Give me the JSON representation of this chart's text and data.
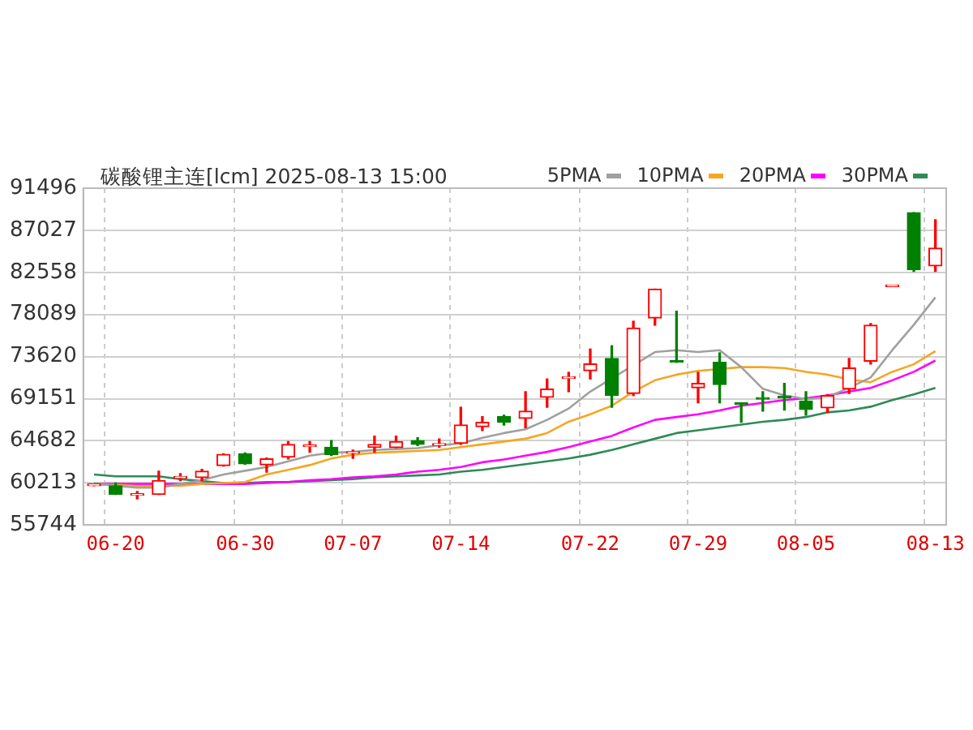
{
  "chart_data": {
    "type": "candlestick",
    "title": "碳酸锂主连[lcm] 2025-08-13 15:00",
    "categories": [
      null,
      "06-20",
      null,
      null,
      null,
      null,
      null,
      "06-30",
      null,
      null,
      null,
      null,
      "07-07",
      null,
      null,
      null,
      null,
      "07-14",
      null,
      null,
      null,
      null,
      null,
      "07-22",
      null,
      null,
      null,
      null,
      "07-29",
      null,
      null,
      null,
      null,
      "08-05",
      null,
      null,
      null,
      null,
      null,
      "08-13"
    ],
    "ylim": [
      55744,
      91496
    ],
    "yticks": [
      55744,
      60213,
      64682,
      69151,
      73620,
      78089,
      82558,
      87027,
      91496
    ],
    "grid": true,
    "legend": "top right",
    "series": [
      {
        "type": "candlestick",
        "ohlc": [
          [
            59900,
            60100,
            59900,
            60100
          ],
          [
            59900,
            60200,
            58990,
            59000
          ],
          [
            58900,
            59300,
            58500,
            59000
          ],
          [
            58990,
            61460,
            58990,
            60470
          ],
          [
            60700,
            61200,
            60450,
            60900
          ],
          [
            60760,
            61640,
            60470,
            61460
          ],
          [
            62050,
            63300,
            62000,
            63230
          ],
          [
            63300,
            63400,
            62200,
            62230
          ],
          [
            62120,
            62850,
            61350,
            62760
          ],
          [
            62940,
            64590,
            62760,
            64290
          ],
          [
            64060,
            64590,
            63470,
            64200
          ],
          [
            64000,
            64700,
            63110,
            63230
          ],
          [
            63350,
            63700,
            62820,
            63500
          ],
          [
            64000,
            65170,
            63470,
            64300
          ],
          [
            63950,
            65170,
            63950,
            64590
          ],
          [
            64700,
            65000,
            64170,
            64300
          ],
          [
            64200,
            64880,
            64000,
            64300
          ],
          [
            64410,
            68240,
            64290,
            66350
          ],
          [
            66180,
            67240,
            65770,
            66650
          ],
          [
            67240,
            67400,
            66350,
            66650
          ],
          [
            67060,
            69890,
            66060,
            67830
          ],
          [
            69300,
            71240,
            68240,
            70180
          ],
          [
            71300,
            71950,
            69890,
            71480
          ],
          [
            72120,
            74420,
            71240,
            72830
          ],
          [
            73420,
            74770,
            68240,
            69480
          ],
          [
            69710,
            77370,
            69480,
            76660
          ],
          [
            77720,
            80780,
            76950,
            80780
          ],
          [
            73200,
            78430,
            73010,
            73010
          ],
          [
            70300,
            71950,
            68710,
            70770
          ],
          [
            73010,
            74010,
            68710,
            70650
          ],
          [
            68600,
            68600,
            66650,
            68530
          ],
          [
            69150,
            69890,
            67830,
            69100
          ],
          [
            69300,
            70770,
            67940,
            69240
          ],
          [
            68890,
            69890,
            67410,
            68000
          ],
          [
            68180,
            69590,
            67710,
            69480
          ],
          [
            70180,
            73420,
            69710,
            72420
          ],
          [
            73120,
            77130,
            72830,
            76950
          ],
          [
            81050,
            81100,
            81050,
            81100
          ],
          [
            88900,
            88900,
            82660,
            82840
          ],
          [
            83250,
            88140,
            82660,
            85140
          ]
        ],
        "colors": [
          "#ff0000",
          "#008000",
          "#ff0000",
          "#ff0000",
          "#ff0000",
          "#ff0000",
          "#ff0000",
          "#008000",
          "#ff0000",
          "#ff0000",
          "#ff0000",
          "#008000",
          "#ff0000",
          "#ff0000",
          "#ff0000",
          "#008000",
          "#ff0000",
          "#ff0000",
          "#ff0000",
          "#008000",
          "#ff0000",
          "#ff0000",
          "#ff0000",
          "#ff0000",
          "#008000",
          "#ff0000",
          "#ff0000",
          "#008000",
          "#ff0000",
          "#008000",
          "#008000",
          "#008000",
          "#008000",
          "#008000",
          "#ff0000",
          "#ff0000",
          "#ff0000",
          "#ff0000",
          "#008000",
          "#ff0000"
        ]
      },
      {
        "type": "line",
        "name": "5PMA",
        "color": "#a0a0a0",
        "values": [
          60200,
          59900,
          59700,
          59700,
          60100,
          60500,
          61100,
          61500,
          61900,
          62500,
          63100,
          63400,
          63500,
          63700,
          63800,
          63900,
          64200,
          64400,
          65000,
          65500,
          65900,
          66900,
          68100,
          69900,
          null,
          null,
          74100,
          74300,
          74100,
          74300,
          72500,
          70200,
          69500,
          69100,
          69300,
          70300,
          71400,
          74300,
          77000,
          79900
        ]
      },
      {
        "type": "line",
        "name": "10PMA",
        "color": "#f5a623",
        "values": [
          60000,
          60000,
          59900,
          59900,
          59900,
          60100,
          60200,
          60300,
          61100,
          61600,
          62100,
          62800,
          63200,
          63400,
          63500,
          63600,
          63700,
          64000,
          64300,
          64600,
          64900,
          65500,
          66700,
          67500,
          68400,
          69900,
          71100,
          71700,
          72100,
          null,
          72500,
          72500,
          72400,
          72000,
          71700,
          71200,
          70900,
          72000,
          72800,
          74200
        ]
      },
      {
        "type": "line",
        "name": "20PMA",
        "color": "#ff00ff",
        "values": [
          60100,
          60100,
          60100,
          60100,
          60100,
          60100,
          60100,
          60100,
          60200,
          60300,
          60500,
          60600,
          60800,
          60900,
          61100,
          61400,
          61600,
          61900,
          62400,
          62700,
          63100,
          63500,
          64000,
          64600,
          65200,
          66100,
          66900,
          67200,
          67500,
          67900,
          68400,
          68700,
          69000,
          69200,
          69500,
          69900,
          70300,
          71100,
          72000,
          73200
        ]
      },
      {
        "type": "line",
        "name": "30PMA",
        "color": "#2e8b57",
        "values": [
          61100,
          60900,
          60900,
          60900,
          60600,
          60400,
          60200,
          60200,
          60300,
          60300,
          60400,
          60500,
          60600,
          60800,
          60900,
          61000,
          61100,
          61400,
          61600,
          61900,
          62200,
          62500,
          62800,
          63200,
          63700,
          64300,
          64900,
          65500,
          65800,
          66100,
          66400,
          66700,
          66900,
          67200,
          67700,
          67900,
          68300,
          69000,
          69600,
          70300
        ]
      }
    ]
  }
}
